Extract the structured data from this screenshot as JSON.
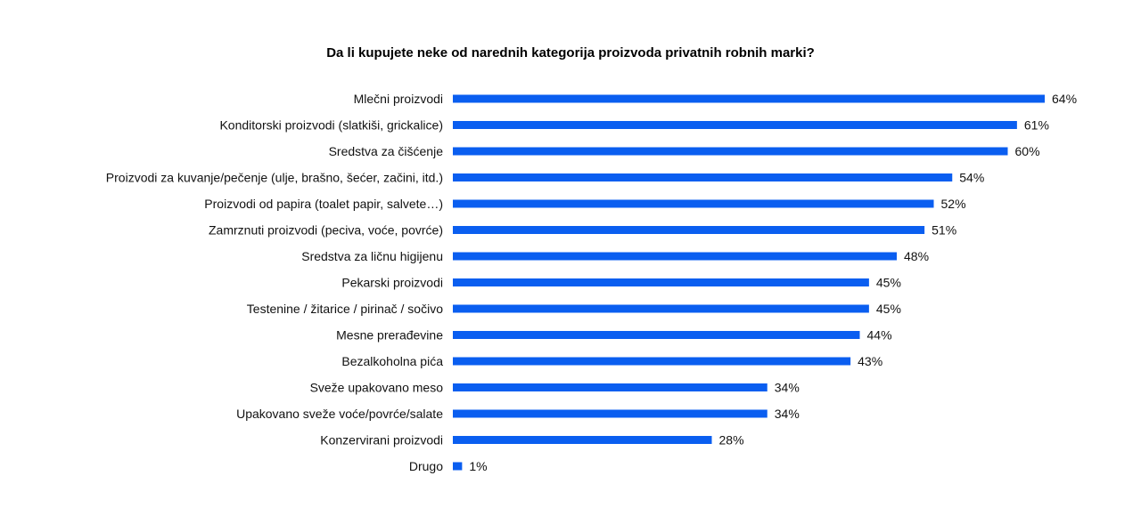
{
  "chart_data": {
    "type": "bar",
    "orientation": "horizontal",
    "title": "Da li kupujete neke od narednih kategorija proizvoda  privatnih robnih marki?",
    "xlabel": "",
    "ylabel": "",
    "xlim": [
      0,
      64
    ],
    "grid": false,
    "legend": "none",
    "bar_color": "#0a5ef0",
    "value_suffix": "%",
    "categories": [
      "Mlečni proizvodi",
      "Konditorski proizvodi (slatkiši, grickalice)",
      "Sredstva za čišćenje",
      "Proizvodi za kuvanje/pečenje (ulje, brašno, šećer, začini, itd.)",
      "Proizvodi od papira (toalet papir, salvete…)",
      "Zamrznuti proizvodi (peciva, voće, povrće)",
      "Sredstva za ličnu higijenu",
      "Pekarski proizvodi",
      "Testenine / žitarice / pirinač / sočivo",
      "Mesne prerađevine",
      "Bezalkoholna pića",
      "Sveže upakovano meso",
      "Upakovano sveže voće/povrće/salate",
      "Konzervirani proizvodi",
      "Drugo"
    ],
    "values": [
      64,
      61,
      60,
      54,
      52,
      51,
      48,
      45,
      45,
      44,
      43,
      34,
      34,
      28,
      1
    ],
    "value_labels": [
      "64%",
      "61%",
      "60%",
      "54%",
      "52%",
      "51%",
      "48%",
      "45%",
      "45%",
      "44%",
      "43%",
      "34%",
      "34%",
      "28%",
      "1%"
    ]
  }
}
